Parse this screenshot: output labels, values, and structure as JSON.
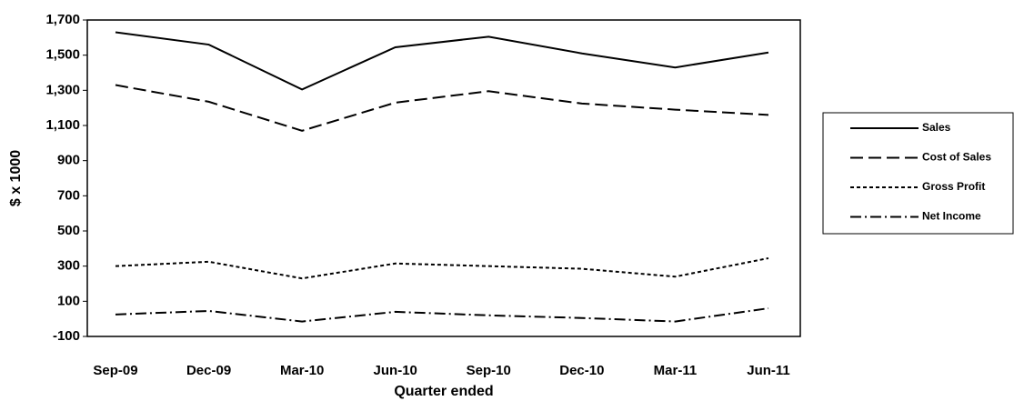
{
  "chart_data": {
    "type": "line",
    "x_label": "Quarter ended",
    "y_label": "$ x 1000",
    "categories": [
      "Sep-09",
      "Dec-09",
      "Mar-10",
      "Jun-10",
      "Sep-10",
      "Dec-10",
      "Mar-11",
      "Jun-11"
    ],
    "series": [
      {
        "name": "Sales",
        "color": "#000000",
        "dash": "solid",
        "values": [
          1630,
          1560,
          1305,
          1545,
          1605,
          1510,
          1430,
          1515
        ]
      },
      {
        "name": "Cost of Sales",
        "color": "#000000",
        "dash": "dashed",
        "values": [
          1330,
          1235,
          1070,
          1230,
          1295,
          1225,
          1190,
          1160
        ]
      },
      {
        "name": "Gross Profit",
        "color": "#000000",
        "dash": "dotted",
        "values": [
          300,
          325,
          230,
          315,
          300,
          285,
          240,
          345
        ]
      },
      {
        "name": "Net Income",
        "color": "#000000",
        "dash": "dashdot",
        "values": [
          25,
          45,
          -15,
          40,
          20,
          5,
          -15,
          60
        ]
      }
    ],
    "ylim": [
      -100,
      1700
    ],
    "yticks": [
      -100,
      {
        "value": 100,
        "label": "100"
      },
      300,
      500,
      700,
      900,
      {
        "value": 1100,
        "label": "1,100"
      },
      {
        "value": 1300,
        "label": "1,300"
      },
      {
        "value": 1500,
        "label": "1,500"
      },
      {
        "value": 1700,
        "label": "1,700"
      }
    ],
    "grid": false,
    "legend": "right"
  }
}
